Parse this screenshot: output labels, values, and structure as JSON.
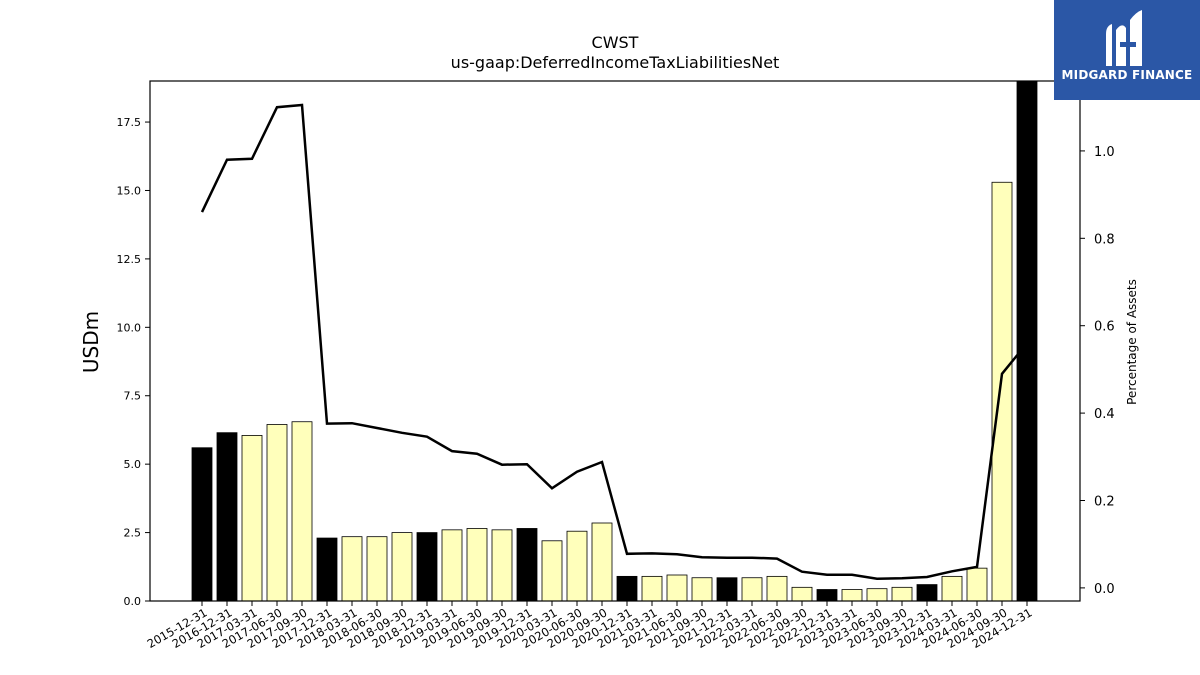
{
  "logo": {
    "text": "MIDGARD FINANCE"
  },
  "colors": {
    "bar_annual": "#000000",
    "bar_quarterly": "#ffffbb",
    "line": "#000000",
    "logo_bg": "#2b57a6"
  },
  "chart_data": {
    "type": "bar",
    "title": "CWST",
    "subtitle": "us-gaap:DeferredIncomeTaxLiabilitiesNet",
    "ylabel": "USDm",
    "y2label": "Percentage of Assets",
    "ylim": [
      0,
      19.0
    ],
    "y2lim": [
      -0.03,
      1.16
    ],
    "yticks": [
      "0.0",
      "2.5",
      "5.0",
      "7.5",
      "10.0",
      "12.5",
      "15.0",
      "17.5"
    ],
    "y2ticks": [
      "0.0",
      "0.2",
      "0.4",
      "0.6",
      "0.8",
      "1.0"
    ],
    "grid": false,
    "categories": [
      "2015-12-31",
      "2016-12-31",
      "2017-03-31",
      "2017-06-30",
      "2017-09-30",
      "2017-12-31",
      "2018-03-31",
      "2018-06-30",
      "2018-09-30",
      "2018-12-31",
      "2019-03-31",
      "2019-06-30",
      "2019-09-30",
      "2019-12-31",
      "2020-03-31",
      "2020-06-30",
      "2020-09-30",
      "2020-12-31",
      "2021-03-31",
      "2021-06-30",
      "2021-09-30",
      "2021-12-31",
      "2022-03-31",
      "2022-06-30",
      "2022-09-30",
      "2022-12-31",
      "2023-03-31",
      "2023-06-30",
      "2023-09-30",
      "2023-12-31",
      "2024-03-31",
      "2024-06-30",
      "2024-09-30",
      "2024-12-31"
    ],
    "series": [
      {
        "type": "bar",
        "values": [
          5.6,
          6.15,
          6.05,
          6.45,
          6.55,
          2.3,
          2.35,
          2.35,
          2.5,
          2.5,
          2.6,
          2.65,
          2.6,
          2.65,
          2.2,
          2.55,
          2.85,
          0.9,
          0.9,
          0.95,
          0.85,
          0.85,
          0.85,
          0.9,
          0.5,
          0.42,
          0.42,
          0.45,
          0.5,
          0.6,
          0.9,
          1.2,
          15.3,
          19.0
        ],
        "period": [
          "annual",
          "annual",
          "quarterly",
          "quarterly",
          "quarterly",
          "annual",
          "quarterly",
          "quarterly",
          "quarterly",
          "annual",
          "quarterly",
          "quarterly",
          "quarterly",
          "annual",
          "quarterly",
          "quarterly",
          "quarterly",
          "annual",
          "quarterly",
          "quarterly",
          "quarterly",
          "annual",
          "quarterly",
          "quarterly",
          "quarterly",
          "annual",
          "quarterly",
          "quarterly",
          "quarterly",
          "annual",
          "quarterly",
          "quarterly",
          "quarterly",
          "annual"
        ]
      },
      {
        "type": "line",
        "axis": "right",
        "values": [
          0.86,
          0.98,
          0.982,
          1.1,
          1.105,
          0.376,
          0.377,
          0.366,
          0.355,
          0.346,
          0.313,
          0.307,
          0.282,
          0.283,
          0.228,
          0.266,
          0.288,
          0.078,
          0.079,
          0.077,
          0.07,
          0.069,
          0.069,
          0.067,
          0.037,
          0.03,
          0.03,
          0.021,
          0.022,
          0.025,
          0.038,
          0.048,
          0.49,
          0.56
        ]
      }
    ]
  }
}
